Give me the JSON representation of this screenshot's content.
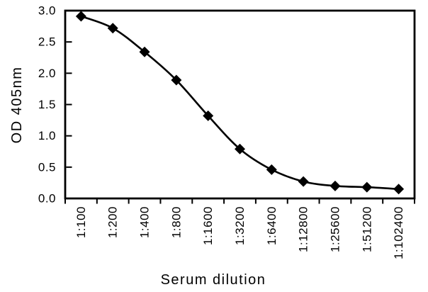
{
  "chart_data": {
    "type": "line",
    "title": "",
    "xlabel": "Serum dilution",
    "ylabel": "OD 405nm",
    "categories": [
      "1:100",
      "1:200",
      "1:400",
      "1:800",
      "1:1600",
      "1:3200",
      "1:6400",
      "1:12800",
      "1:25600",
      "1:51200",
      "1:102400"
    ],
    "values": [
      2.91,
      2.72,
      2.34,
      1.89,
      1.32,
      0.79,
      0.46,
      0.27,
      0.2,
      0.18,
      0.15
    ],
    "ylim": [
      0,
      3
    ],
    "ytick_interval": 0.5,
    "ytick_labels": [
      "0.0",
      "0.5",
      "1.0",
      "1.5",
      "2.0",
      "2.5",
      "3.0"
    ],
    "xtick_label_rotation": 90,
    "grid": false,
    "legend": "none",
    "marker_shape": "diamond",
    "line_style": "smooth",
    "line_color": "#000000",
    "marker_color": "#000000",
    "text_color": "#000000",
    "background_color": "#ffffff"
  }
}
